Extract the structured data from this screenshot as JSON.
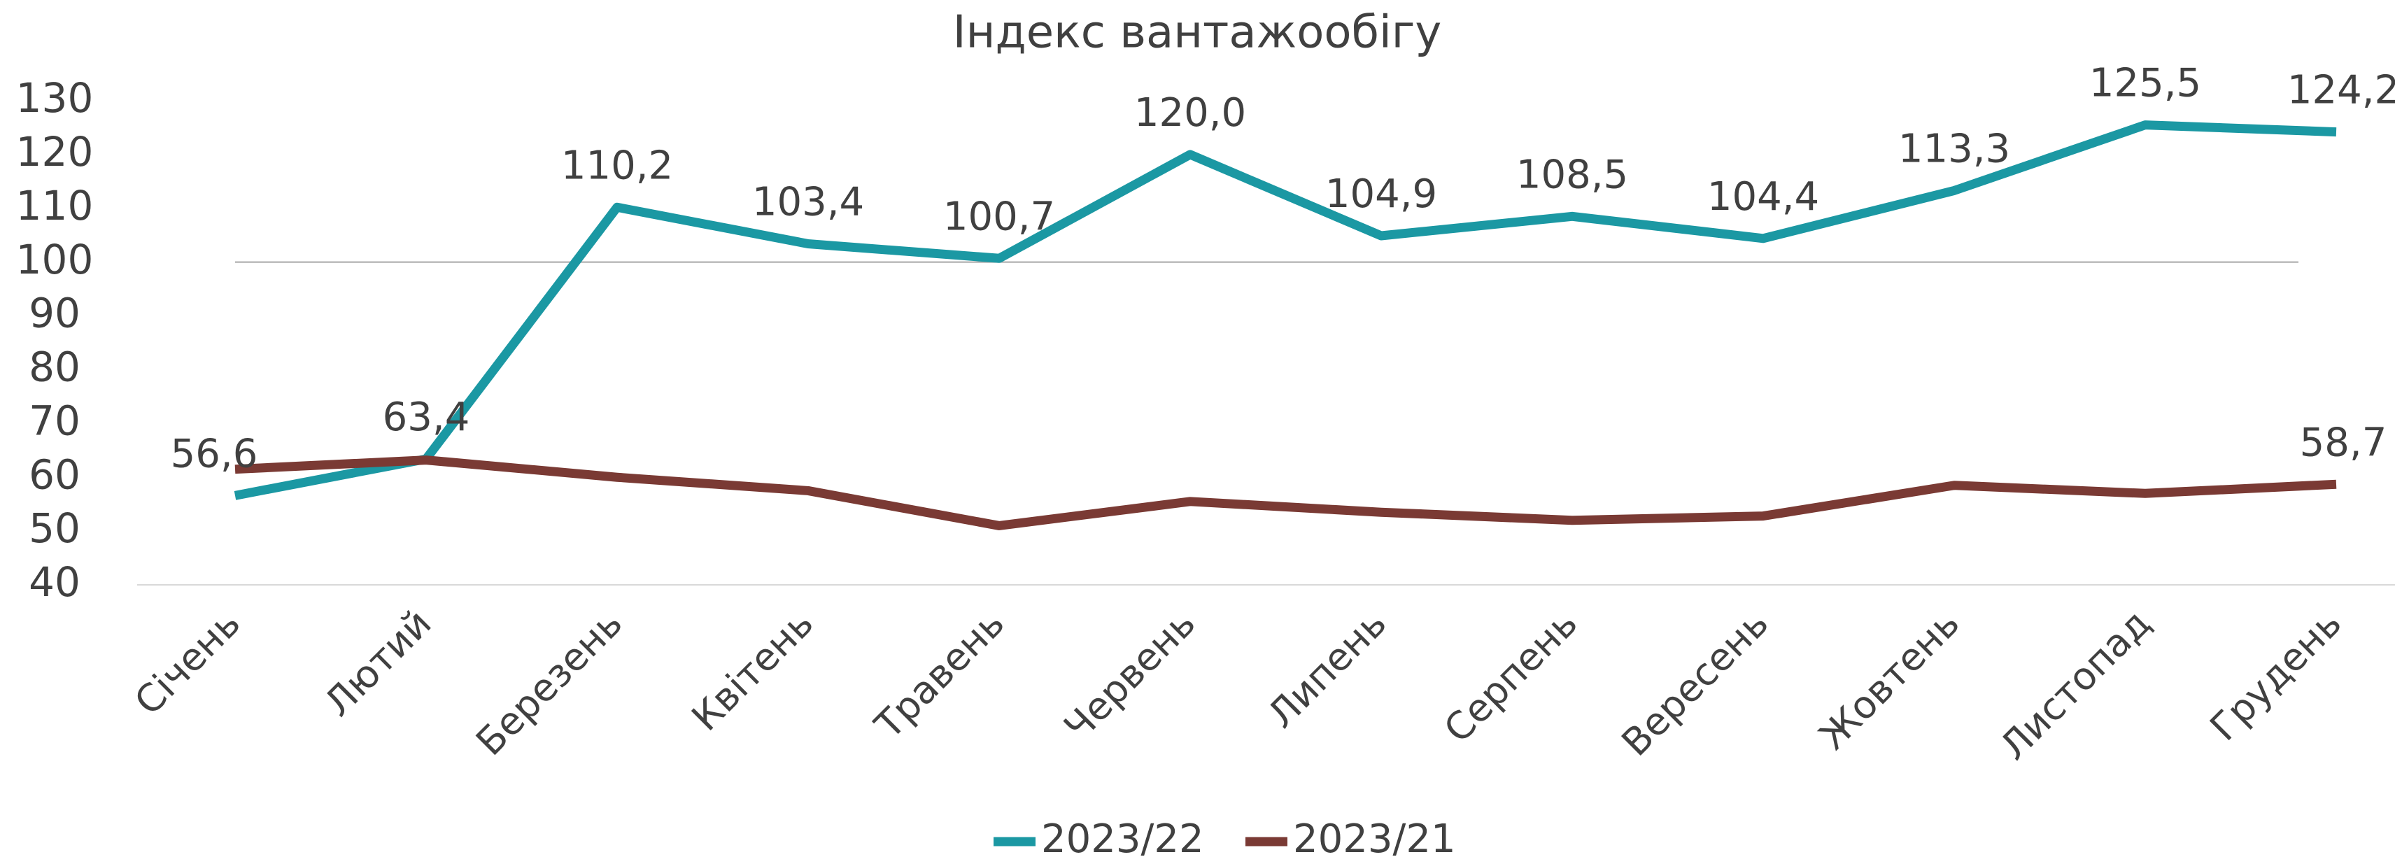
{
  "chart_data": {
    "type": "line",
    "title": "Індекс вантажообігу",
    "categories": [
      "Січень",
      "Лютий",
      "Березень",
      "Квітень",
      "Травень",
      "Червень",
      "Липень",
      "Серпень",
      "Вересень",
      "Жовтень",
      "Листопад",
      "Грудень"
    ],
    "series": [
      {
        "name": "2023/22",
        "color": "#1b98a3",
        "values": [
          56.6,
          63.4,
          110.2,
          103.4,
          100.7,
          120.0,
          104.9,
          108.5,
          104.4,
          113.3,
          125.5,
          124.2
        ],
        "value_labels": [
          "56,6",
          "63,4",
          "110,2",
          "103,4",
          "100,7",
          "120,0",
          "104,9",
          "108,5",
          "104,4",
          "113,3",
          "125,5",
          "124,2"
        ]
      },
      {
        "name": "2023/21",
        "color": "#7a3a34",
        "values": [
          61.5,
          63.2,
          60,
          57.5,
          51,
          55.5,
          53.5,
          52,
          52.8,
          58.5,
          57,
          58.7
        ],
        "value_labels": [
          null,
          null,
          null,
          null,
          null,
          null,
          null,
          null,
          null,
          null,
          null,
          "58,7"
        ]
      }
    ],
    "ylim": [
      40,
      130
    ],
    "yticks": [
      40,
      50,
      60,
      70,
      80,
      90,
      100,
      110,
      120,
      130
    ],
    "reference_line": 100
  }
}
